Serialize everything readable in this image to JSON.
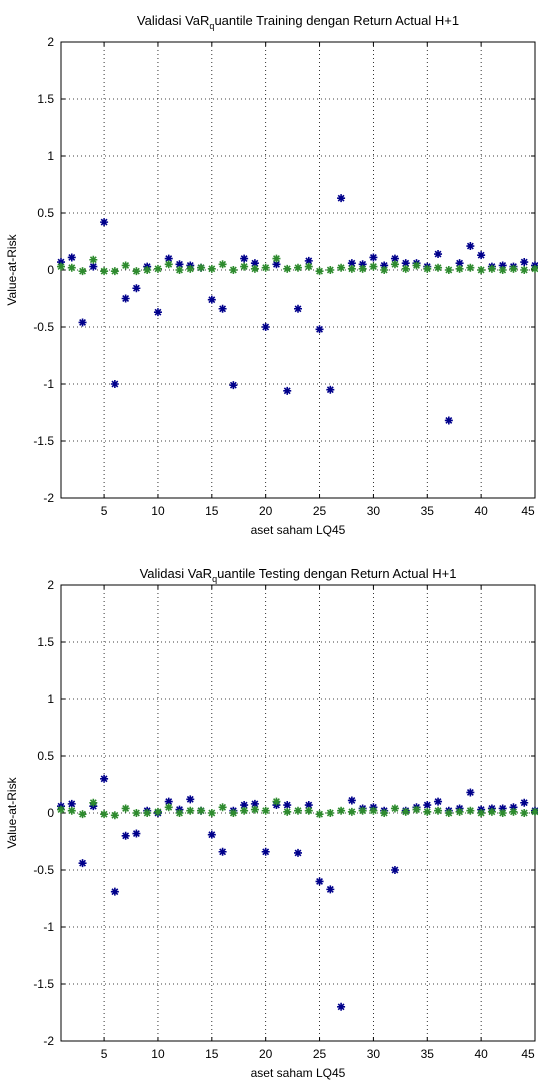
{
  "chart_data": [
    {
      "type": "scatter",
      "title_main": "Validasi VaR",
      "title_sub": "q",
      "title_rest": "uantile Training dengan Return Actual H+1",
      "xlabel": "aset saham LQ45",
      "ylabel": "Value-at-Risk",
      "xlim": [
        1,
        45
      ],
      "ylim": [
        -2,
        2
      ],
      "xticks": [
        5,
        10,
        15,
        20,
        25,
        30,
        35,
        40,
        45
      ],
      "xtick_labels": [
        "5",
        "10",
        "15",
        "20",
        "25",
        "30",
        "35",
        "40",
        "45"
      ],
      "yticks": [
        -2,
        -1.5,
        -1,
        -0.5,
        0,
        0.5,
        1,
        1.5,
        2
      ],
      "ytick_labels": [
        "-2",
        "-1.5",
        "-1",
        "-0.5",
        "0",
        "0.5",
        "1",
        "1.5",
        "2"
      ],
      "grid": true,
      "x": [
        1,
        2,
        3,
        4,
        5,
        6,
        7,
        8,
        9,
        10,
        11,
        12,
        13,
        14,
        15,
        16,
        17,
        18,
        19,
        20,
        21,
        22,
        23,
        24,
        25,
        26,
        27,
        28,
        29,
        30,
        31,
        32,
        33,
        34,
        35,
        36,
        37,
        38,
        39,
        40,
        41,
        42,
        43,
        44,
        45
      ],
      "series": [
        {
          "color": "#00008b",
          "marker": "*",
          "values": [
            0.07,
            0.11,
            -0.46,
            0.03,
            0.42,
            -1.0,
            -0.25,
            -0.16,
            0.03,
            -0.37,
            0.1,
            0.05,
            0.04,
            0.02,
            -0.26,
            -0.34,
            -1.01,
            0.1,
            0.06,
            -0.5,
            0.05,
            -1.06,
            -0.34,
            0.08,
            -0.52,
            -1.05,
            0.63,
            0.06,
            0.05,
            0.11,
            0.04,
            0.1,
            0.06,
            0.06,
            0.03,
            0.14,
            -1.32,
            0.06,
            0.21,
            0.13,
            0.03,
            0.04,
            0.03,
            0.07,
            0.04
          ]
        },
        {
          "color": "#2e8b2e",
          "marker": "*",
          "values": [
            0.03,
            0.02,
            -0.01,
            0.09,
            -0.01,
            -0.01,
            0.04,
            -0.01,
            0.0,
            0.01,
            0.05,
            0.0,
            0.01,
            0.02,
            0.01,
            0.05,
            0.0,
            0.03,
            0.01,
            0.02,
            0.1,
            0.01,
            0.02,
            0.03,
            -0.01,
            0.0,
            0.02,
            0.01,
            0.01,
            0.03,
            0.0,
            0.05,
            0.01,
            0.04,
            0.01,
            0.02,
            0.0,
            0.01,
            0.02,
            0.0,
            0.01,
            0.0,
            0.01,
            0.0,
            0.01
          ]
        }
      ]
    },
    {
      "type": "scatter",
      "title_main": "Validasi VaR",
      "title_sub": "q",
      "title_rest": "uantile Testing dengan Return Actual H+1",
      "xlabel": "aset saham LQ45",
      "ylabel": "Value-at-Risk",
      "xlim": [
        1,
        45
      ],
      "ylim": [
        -2,
        2
      ],
      "xticks": [
        5,
        10,
        15,
        20,
        25,
        30,
        35,
        40,
        45
      ],
      "xtick_labels": [
        "5",
        "10",
        "15",
        "20",
        "25",
        "30",
        "35",
        "40",
        "45"
      ],
      "yticks": [
        -2,
        -1.5,
        -1,
        -0.5,
        0,
        0.5,
        1,
        1.5,
        2
      ],
      "ytick_labels": [
        "-2",
        "-1.5",
        "-1",
        "-0.5",
        "0",
        "0.5",
        "1",
        "1.5",
        "2"
      ],
      "grid": true,
      "x": [
        1,
        2,
        3,
        4,
        5,
        6,
        7,
        8,
        9,
        10,
        11,
        12,
        13,
        14,
        15,
        16,
        17,
        18,
        19,
        20,
        21,
        22,
        23,
        24,
        25,
        26,
        27,
        28,
        29,
        30,
        31,
        32,
        33,
        34,
        35,
        36,
        37,
        38,
        39,
        40,
        41,
        42,
        43,
        44,
        45
      ],
      "series": [
        {
          "color": "#00008b",
          "marker": "*",
          "values": [
            0.06,
            0.08,
            -0.44,
            0.06,
            0.3,
            -0.69,
            -0.2,
            -0.18,
            0.02,
            0.0,
            0.1,
            0.03,
            0.12,
            0.02,
            -0.19,
            -0.34,
            0.02,
            0.07,
            0.08,
            -0.34,
            0.07,
            0.07,
            -0.35,
            0.07,
            -0.6,
            -0.67,
            -1.7,
            0.11,
            0.04,
            0.05,
            0.02,
            -0.5,
            0.02,
            0.05,
            0.07,
            0.1,
            0.02,
            0.04,
            0.18,
            0.03,
            0.04,
            0.04,
            0.05,
            0.09,
            0.02
          ]
        },
        {
          "color": "#2e8b2e",
          "marker": "*",
          "values": [
            0.03,
            0.02,
            -0.01,
            0.09,
            -0.01,
            -0.02,
            0.04,
            0.0,
            0.0,
            0.01,
            0.05,
            0.0,
            0.02,
            0.02,
            0.0,
            0.05,
            0.0,
            0.02,
            0.03,
            0.02,
            0.1,
            0.01,
            0.02,
            0.02,
            -0.01,
            0.0,
            0.02,
            0.01,
            0.02,
            0.02,
            0.0,
            0.04,
            0.01,
            0.03,
            0.01,
            0.02,
            0.0,
            0.01,
            0.02,
            0.0,
            0.01,
            0.0,
            0.01,
            0.0,
            0.01
          ]
        }
      ]
    }
  ]
}
